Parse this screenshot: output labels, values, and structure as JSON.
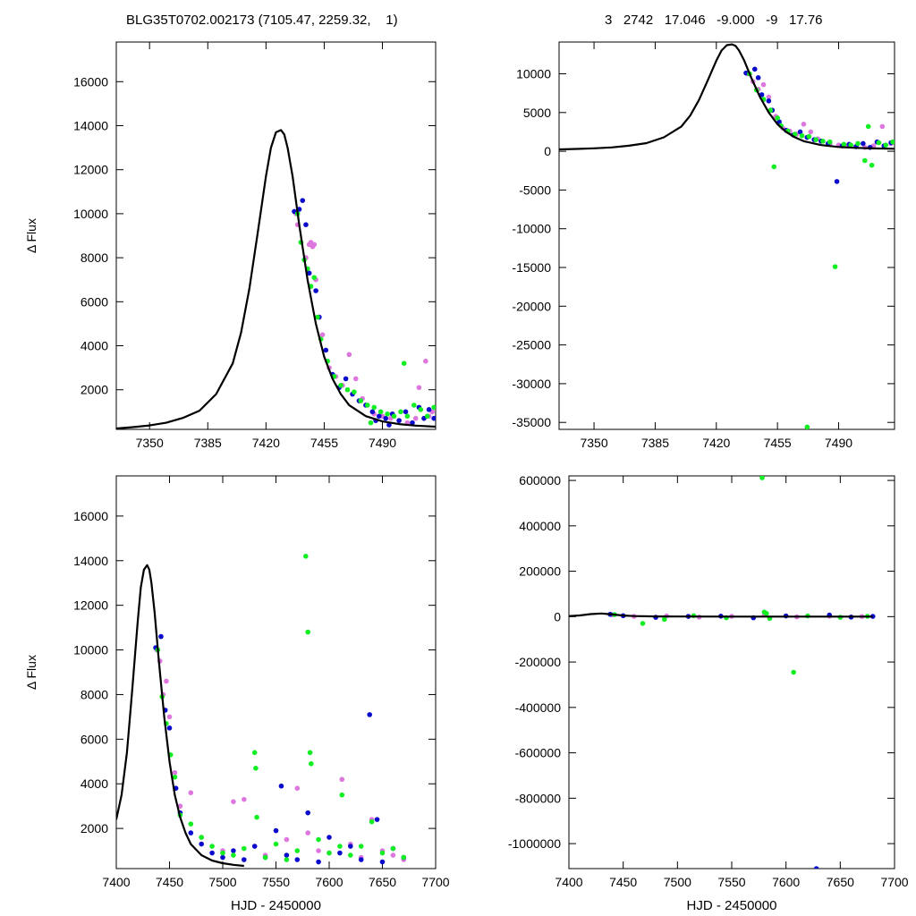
{
  "header": {
    "left": "BLG35T0702.002173 (7105.47, 2259.32,    1)",
    "right": "3   2742   17.046   -9.000   -9   17.76"
  },
  "colors": {
    "model": "#000000",
    "series_a": "#dd77dd",
    "series_b": "#0a0acc",
    "series_c": "#11ee22"
  },
  "chart_data": [
    {
      "type": "scatter",
      "title": "",
      "xlabel": "",
      "ylabel": "Δ Flux",
      "xlim": [
        7330,
        7522
      ],
      "ylim": [
        200,
        17800
      ],
      "xticks": [
        7350,
        7385,
        7420,
        7455,
        7490
      ],
      "yticks": [
        2000,
        4000,
        6000,
        8000,
        10000,
        12000,
        14000,
        16000
      ],
      "grid": false,
      "model": {
        "x": [
          7330,
          7340,
          7350,
          7360,
          7370,
          7380,
          7390,
          7400,
          7405,
          7410,
          7415,
          7420,
          7423,
          7426,
          7429,
          7431,
          7433,
          7436,
          7440,
          7445,
          7450,
          7455,
          7460,
          7465,
          7470,
          7480,
          7490,
          7500,
          7510,
          7522
        ],
        "y": [
          240,
          300,
          380,
          500,
          720,
          1050,
          1800,
          3200,
          4600,
          6600,
          9100,
          11700,
          13000,
          13700,
          13800,
          13600,
          13000,
          11700,
          9500,
          7000,
          5000,
          3500,
          2500,
          1800,
          1300,
          800,
          560,
          440,
          370,
          320
        ]
      },
      "series": [
        {
          "color": "#dd77dd",
          "x": [
            7438,
            7439,
            7441,
            7444,
            7446,
            7447,
            7448,
            7449,
            7450,
            7452,
            7454,
            7458,
            7462,
            7466,
            7470,
            7474,
            7478,
            7485,
            7490,
            7495,
            7500,
            7505,
            7510,
            7512,
            7516,
            7520,
            7518
          ],
          "y": [
            10000,
            9500,
            8700,
            8000,
            8600,
            8700,
            8500,
            8600,
            7000,
            5300,
            4500,
            3000,
            2600,
            2200,
            3600,
            2500,
            1600,
            900,
            800,
            700,
            600,
            500,
            700,
            2100,
            3300,
            1000,
            800
          ]
        },
        {
          "color": "#0a0acc",
          "x": [
            7437,
            7440,
            7442,
            7444,
            7446,
            7450,
            7452,
            7456,
            7460,
            7464,
            7468,
            7472,
            7476,
            7480,
            7484,
            7488,
            7492,
            7496,
            7500,
            7504,
            7508,
            7512,
            7515,
            7518,
            7521,
            7486,
            7494
          ],
          "y": [
            10100,
            10200,
            10600,
            9500,
            7300,
            6500,
            5300,
            3800,
            2700,
            2100,
            2500,
            1800,
            1500,
            1300,
            1000,
            800,
            700,
            900,
            600,
            1000,
            500,
            1200,
            700,
            1100,
            700,
            600,
            400
          ]
        },
        {
          "color": "#11ee22",
          "x": [
            7439,
            7441,
            7443,
            7445,
            7447,
            7449,
            7451,
            7453,
            7457,
            7461,
            7465,
            7469,
            7473,
            7477,
            7481,
            7485,
            7489,
            7493,
            7497,
            7501,
            7505,
            7509,
            7513,
            7517,
            7521,
            7503,
            7483
          ],
          "y": [
            10000,
            8700,
            7900,
            7500,
            6700,
            7100,
            5300,
            4300,
            3300,
            2600,
            2200,
            2000,
            1900,
            1500,
            1300,
            1200,
            1000,
            900,
            800,
            1000,
            800,
            1300,
            1100,
            800,
            1200,
            3200,
            500
          ]
        }
      ]
    },
    {
      "type": "scatter",
      "title": "",
      "xlabel": "",
      "ylabel": "",
      "xlim": [
        7330,
        7522
      ],
      "ylim": [
        -35900,
        14100
      ],
      "xticks": [
        7350,
        7385,
        7420,
        7455,
        7490
      ],
      "yticks": [
        -35000,
        -30000,
        -25000,
        -20000,
        -15000,
        -10000,
        -5000,
        0,
        5000,
        10000
      ],
      "grid": false,
      "model": {
        "x": [
          7330,
          7340,
          7350,
          7360,
          7370,
          7380,
          7390,
          7400,
          7405,
          7410,
          7415,
          7420,
          7423,
          7426,
          7429,
          7431,
          7433,
          7436,
          7440,
          7445,
          7450,
          7455,
          7460,
          7465,
          7470,
          7480,
          7490,
          7500,
          7510,
          7522
        ],
        "y": [
          240,
          300,
          380,
          500,
          720,
          1050,
          1800,
          3200,
          4600,
          6600,
          9100,
          11700,
          13000,
          13700,
          13800,
          13600,
          13000,
          11700,
          9500,
          7000,
          5000,
          3500,
          2500,
          1800,
          1300,
          800,
          560,
          440,
          370,
          320
        ]
      },
      "series": [
        {
          "color": "#dd77dd",
          "x": [
            7438,
            7441,
            7444,
            7447,
            7450,
            7454,
            7458,
            7462,
            7466,
            7470,
            7474,
            7478,
            7485,
            7490,
            7495,
            7500,
            7505,
            7510,
            7515,
            7520
          ],
          "y": [
            10000,
            9000,
            8000,
            8600,
            7000,
            4500,
            3000,
            2600,
            2200,
            3500,
            2500,
            1600,
            900,
            800,
            700,
            600,
            500,
            700,
            3200,
            1000
          ]
        },
        {
          "color": "#0a0acc",
          "x": [
            7437,
            7442,
            7444,
            7446,
            7450,
            7452,
            7456,
            7460,
            7464,
            7468,
            7472,
            7476,
            7480,
            7484,
            7489,
            7492,
            7496,
            7500,
            7504,
            7508,
            7512,
            7516,
            7520
          ],
          "y": [
            10100,
            10600,
            9500,
            7300,
            6500,
            5300,
            3800,
            2700,
            2100,
            2500,
            1800,
            1500,
            1300,
            1000,
            -3900,
            700,
            900,
            600,
            1000,
            500,
            1200,
            700,
            1100
          ]
        },
        {
          "color": "#11ee22",
          "x": [
            7439,
            7443,
            7447,
            7451,
            7453,
            7455,
            7457,
            7461,
            7465,
            7469,
            7473,
            7477,
            7481,
            7485,
            7488,
            7493,
            7497,
            7501,
            7505,
            7507,
            7509,
            7513,
            7517,
            7521,
            7472
          ],
          "y": [
            10000,
            7900,
            6700,
            5300,
            -2000,
            4300,
            3300,
            2600,
            2200,
            2000,
            1900,
            1500,
            1300,
            1200,
            -14900,
            900,
            800,
            1000,
            -1200,
            3200,
            -1800,
            1100,
            800,
            1200,
            -35600
          ]
        }
      ]
    },
    {
      "type": "scatter",
      "title": "",
      "xlabel": "HJD - 2450000",
      "ylabel": "Δ Flux",
      "xlim": [
        7400,
        7700
      ],
      "ylim": [
        200,
        17800
      ],
      "xticks": [
        7400,
        7450,
        7500,
        7550,
        7600,
        7650,
        7700
      ],
      "yticks": [
        2000,
        4000,
        6000,
        8000,
        10000,
        12000,
        14000,
        16000
      ],
      "grid": false,
      "model": {
        "x": [
          7400,
          7405,
          7410,
          7415,
          7420,
          7423,
          7426,
          7429,
          7431,
          7433,
          7436,
          7440,
          7445,
          7450,
          7455,
          7460,
          7465,
          7470,
          7480,
          7490,
          7500,
          7510,
          7520
        ],
        "y": [
          2400,
          3500,
          5400,
          8200,
          11200,
          12800,
          13600,
          13800,
          13600,
          13000,
          11700,
          9500,
          7000,
          5000,
          3500,
          2500,
          1800,
          1300,
          800,
          560,
          440,
          370,
          320
        ]
      },
      "series": [
        {
          "color": "#dd77dd",
          "x": [
            7438,
            7441,
            7444,
            7447,
            7450,
            7455,
            7460,
            7470,
            7480,
            7500,
            7510,
            7520,
            7530,
            7540,
            7560,
            7570,
            7580,
            7590,
            7600,
            7612,
            7620,
            7630,
            7640,
            7650,
            7660,
            7670
          ],
          "y": [
            10000,
            9500,
            8000,
            8600,
            7000,
            4500,
            3000,
            3600,
            1600,
            1000,
            3200,
            3300,
            1200,
            800,
            1500,
            3800,
            1800,
            1000,
            900,
            4200,
            1300,
            700,
            2400,
            1000,
            800,
            600
          ]
        },
        {
          "color": "#0a0acc",
          "x": [
            7437,
            7442,
            7446,
            7450,
            7456,
            7460,
            7470,
            7480,
            7490,
            7500,
            7510,
            7520,
            7530,
            7540,
            7550,
            7555,
            7560,
            7570,
            7580,
            7590,
            7600,
            7610,
            7620,
            7630,
            7638,
            7645,
            7650,
            7660,
            7670
          ],
          "y": [
            10100,
            10600,
            7300,
            6500,
            3800,
            2700,
            1800,
            1300,
            900,
            700,
            1000,
            600,
            1200,
            700,
            1900,
            3900,
            800,
            600,
            2700,
            500,
            1600,
            900,
            1200,
            600,
            7100,
            2400,
            500,
            1100,
            700
          ]
        },
        {
          "color": "#11ee22",
          "x": [
            7439,
            7443,
            7447,
            7451,
            7455,
            7460,
            7470,
            7480,
            7490,
            7500,
            7510,
            7520,
            7530,
            7531,
            7532,
            7540,
            7550,
            7560,
            7570,
            7578,
            7580,
            7582,
            7583,
            7590,
            7600,
            7610,
            7612,
            7620,
            7630,
            7640,
            7650,
            7660,
            7670
          ],
          "y": [
            10000,
            7900,
            6700,
            5300,
            4300,
            2600,
            2200,
            1600,
            1200,
            900,
            800,
            1100,
            5400,
            4700,
            2500,
            700,
            1300,
            600,
            1000,
            14200,
            10800,
            5400,
            4900,
            1500,
            900,
            1200,
            3500,
            800,
            1200,
            2300,
            900,
            1100,
            700
          ]
        }
      ]
    },
    {
      "type": "scatter",
      "title": "",
      "xlabel": "HJD - 2450000",
      "ylabel": "",
      "xlim": [
        7400,
        7700
      ],
      "ylim": [
        -1110000,
        620000
      ],
      "xticks": [
        7400,
        7450,
        7500,
        7550,
        7600,
        7650,
        7700
      ],
      "yticks": [
        -1000000,
        -800000,
        -600000,
        -400000,
        -200000,
        0,
        200000,
        400000,
        600000
      ],
      "grid": false,
      "model": {
        "x": [
          7400,
          7410,
          7420,
          7430,
          7440,
          7450,
          7460,
          7480,
          7500,
          7550,
          7600,
          7650,
          7680
        ],
        "y": [
          2400,
          5400,
          11200,
          13800,
          9500,
          5000,
          2500,
          800,
          440,
          300,
          250,
          220,
          200
        ]
      },
      "series": [
        {
          "color": "#dd77dd",
          "x": [
            7440,
            7460,
            7490,
            7520,
            7550,
            7580,
            7610,
            7640,
            7670
          ],
          "y": [
            8000,
            1000,
            3000,
            -2000,
            1500,
            8000,
            -1000,
            2000,
            500
          ]
        },
        {
          "color": "#0a0acc",
          "x": [
            7438,
            7450,
            7480,
            7510,
            7540,
            7570,
            7600,
            7628,
            7640,
            7660,
            7680
          ],
          "y": [
            10000,
            4000,
            -3000,
            1000,
            2000,
            -5000,
            3000,
            -1110000,
            7000,
            -2000,
            1000
          ]
        },
        {
          "color": "#11ee22",
          "x": [
            7442,
            7468,
            7488,
            7515,
            7545,
            7578,
            7580,
            7582,
            7585,
            7607,
            7620,
            7650,
            7675
          ],
          "y": [
            9000,
            -30000,
            -12000,
            4000,
            -5000,
            612000,
            20000,
            14000,
            -8000,
            -245000,
            3000,
            -3000,
            1500
          ]
        }
      ]
    }
  ]
}
